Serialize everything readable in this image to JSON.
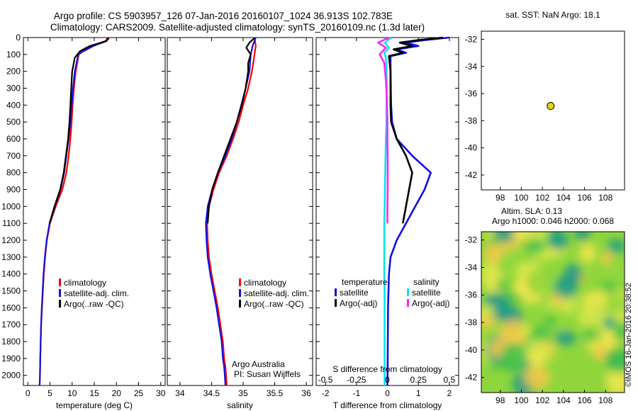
{
  "title": {
    "line1": "Argo profile: CS 5903957_126 07-Jan-2016 20160107_1024 36.913S 102.783E",
    "line2": "Climatology: CARS2009. Satellite-adjusted climatology: synTS_20160109.nc (1.3d later)"
  },
  "credit": "©IMOS 16-Jan-2016 20:38:52",
  "colors": {
    "climatology": "#ff0000",
    "satellite": "#1010dd",
    "argo": "#000000",
    "sal_satellite": "#00e5ee",
    "sal_argo": "#ff22ff",
    "marker": "#e8d800"
  },
  "chart_data": [
    {
      "type": "line",
      "id": "temperature",
      "xlabel": "temperature (deg C)",
      "ylabel": "",
      "xlim": [
        -1,
        31
      ],
      "ylim": [
        2060,
        0
      ],
      "xticks": [
        "0",
        "5",
        "10",
        "15",
        "20",
        "25",
        "30"
      ],
      "xtick_values": [
        0,
        5,
        10,
        15,
        20,
        25,
        30
      ],
      "yticks": [
        "0",
        "100",
        "200",
        "300",
        "400",
        "500",
        "600",
        "700",
        "800",
        "900",
        "1000",
        "1100",
        "1200",
        "1300",
        "1400",
        "1500",
        "1600",
        "1700",
        "1800",
        "1900",
        "2000"
      ],
      "ytick_values": [
        0,
        100,
        200,
        300,
        400,
        500,
        600,
        700,
        800,
        900,
        1000,
        1100,
        1200,
        1300,
        1400,
        1500,
        1600,
        1700,
        1800,
        1900,
        2000
      ],
      "legend": {
        "position": "lower-middle",
        "entries": [
          "climatology",
          "satellite-adj. clim.",
          "Argo(..raw -QC)"
        ]
      },
      "series": [
        {
          "name": "climatology",
          "color": "#ff0000",
          "x": [
            18.0,
            17.6,
            14.5,
            12.5,
            11.5,
            10.8,
            10.4,
            10.1,
            9.9,
            9.6,
            9.2,
            8.7,
            7.8,
            6.3,
            5.0,
            4.3,
            3.9,
            3.6,
            3.4,
            3.2,
            3.0,
            2.9,
            2.8,
            2.75,
            2.7,
            2.65
          ],
          "y": [
            0,
            20,
            50,
            80,
            100,
            200,
            300,
            400,
            500,
            600,
            700,
            800,
            900,
            1000,
            1100,
            1200,
            1300,
            1400,
            1500,
            1600,
            1700,
            1800,
            1900,
            2000,
            2040,
            2060
          ]
        },
        {
          "name": "satellite-adj. clim.",
          "color": "#1010dd",
          "x": [
            18.2,
            17.8,
            14.8,
            12.6,
            11.4,
            10.6,
            10.2,
            9.9,
            9.6,
            9.2,
            8.7,
            8.2,
            7.4,
            6.1,
            4.9,
            4.25,
            3.85,
            3.55,
            3.35,
            3.15,
            3.0,
            2.9,
            2.8,
            2.75,
            2.7,
            2.65
          ],
          "y": [
            0,
            20,
            50,
            80,
            100,
            200,
            300,
            400,
            500,
            600,
            700,
            800,
            900,
            1000,
            1100,
            1200,
            1300,
            1400,
            1500,
            1600,
            1700,
            1800,
            1900,
            2000,
            2040,
            2060
          ]
        },
        {
          "name": "Argo(..raw -QC)",
          "color": "#000000",
          "x": [
            18.3,
            17.7,
            14.0,
            11.8,
            10.6,
            10.0,
            9.8,
            9.6,
            9.4,
            9.1,
            8.6,
            8.1,
            7.3,
            6.0,
            4.9
          ],
          "y": [
            2,
            20,
            50,
            80,
            120,
            200,
            300,
            400,
            500,
            600,
            700,
            800,
            900,
            1000,
            1100
          ]
        }
      ]
    },
    {
      "type": "line",
      "id": "salinity",
      "xlabel": "salinity",
      "ylabel": "",
      "xlim": [
        33.8,
        36.1
      ],
      "ylim": [
        2060,
        0
      ],
      "xticks": [
        "34",
        "34.5",
        "35",
        "35.5",
        "36"
      ],
      "xtick_values": [
        34,
        34.5,
        35,
        35.5,
        36
      ],
      "legend": {
        "position": "lower-right",
        "entries": [
          "climatology",
          "satellite-adj. clim.",
          "Argo(..raw -QC)"
        ]
      },
      "annotation": {
        "line1": "Argo Australia",
        "line2": "PI: Susan Wijffels"
      },
      "series": [
        {
          "name": "climatology",
          "color": "#ff0000",
          "x": [
            35.18,
            35.2,
            35.18,
            35.14,
            35.08,
            35.0,
            34.93,
            34.84,
            34.74,
            34.62,
            34.53,
            34.46,
            34.43,
            34.44,
            34.46,
            34.5,
            34.55,
            34.6,
            34.64,
            34.68,
            34.7,
            34.72,
            34.73,
            34.74
          ],
          "y": [
            0,
            50,
            100,
            200,
            300,
            400,
            500,
            600,
            700,
            800,
            900,
            1000,
            1100,
            1200,
            1300,
            1400,
            1500,
            1600,
            1700,
            1800,
            1900,
            1950,
            2000,
            2060
          ]
        },
        {
          "name": "satellite-adj. clim.",
          "color": "#1010dd",
          "x": [
            35.2,
            35.15,
            35.12,
            35.1,
            35.04,
            34.97,
            34.9,
            34.82,
            34.72,
            34.6,
            34.51,
            34.44,
            34.41,
            34.42,
            34.44,
            34.48,
            34.53,
            34.58,
            34.62,
            34.66,
            34.68,
            34.7,
            34.71,
            34.72
          ],
          "y": [
            0,
            50,
            100,
            200,
            300,
            400,
            500,
            600,
            700,
            800,
            900,
            1000,
            1100,
            1200,
            1300,
            1400,
            1500,
            1600,
            1700,
            1800,
            1900,
            1950,
            2000,
            2060
          ]
        },
        {
          "name": "Argo(..raw -QC)",
          "color": "#000000",
          "x": [
            35.18,
            35.1,
            35.05,
            35.12,
            35.08,
            35.08,
            35.04,
            34.98,
            34.9,
            34.8,
            34.7,
            34.6,
            34.51,
            34.46,
            34.44
          ],
          "y": [
            2,
            30,
            60,
            100,
            150,
            200,
            300,
            400,
            500,
            600,
            700,
            800,
            900,
            1000,
            1100
          ]
        }
      ]
    },
    {
      "type": "line",
      "id": "difference",
      "xlabel": "T difference from climatology",
      "xlabel2": "S difference from climatology",
      "xlim": [
        -2.3,
        2.3
      ],
      "ylim": [
        2060,
        0
      ],
      "xticks": [
        "-2",
        "-1",
        "0",
        "1",
        "2"
      ],
      "xtick_values": [
        -2,
        -1,
        0,
        1,
        2
      ],
      "sticks": [
        "-0.5",
        "-0.25",
        "0",
        "0.25",
        "0.5"
      ],
      "stick_values": [
        -0.5,
        -0.25,
        0,
        0.25,
        0.5
      ],
      "legend": {
        "position": "lower-middle",
        "temperature_header": "temperature",
        "salinity_header": "salinity",
        "entries": [
          "satellite",
          "Argo(-adj)",
          "satellite",
          "Argo(-adj)"
        ]
      },
      "series": [
        {
          "name": "satellite",
          "group": "temperature",
          "color": "#1010dd",
          "x": [
            2.0,
            1.2,
            0.6,
            1.0,
            0.3,
            0.6,
            0.1,
            0.1,
            0.12,
            0.15,
            0.3,
            0.8,
            1.4,
            1.2,
            0.9,
            0.6,
            0.3,
            0.1,
            0.05,
            0.02,
            0.01,
            0.0
          ],
          "y": [
            0,
            15,
            30,
            50,
            70,
            90,
            110,
            200,
            400,
            500,
            600,
            700,
            800,
            900,
            1000,
            1100,
            1200,
            1300,
            1400,
            1600,
            1900,
            2060
          ]
        },
        {
          "name": "Argo(-adj)",
          "group": "temperature",
          "color": "#000000",
          "x": [
            1.8,
            1.0,
            0.4,
            0.8,
            0.2,
            0.5,
            0.05,
            0.1,
            0.1,
            0.12,
            0.3,
            0.6,
            0.8,
            0.7,
            0.6,
            0.5
          ],
          "y": [
            0,
            15,
            30,
            50,
            70,
            90,
            110,
            200,
            400,
            500,
            600,
            700,
            800,
            900,
            1000,
            1100
          ]
        },
        {
          "name": "satellite",
          "group": "salinity",
          "color": "#00e5ee",
          "x": [
            0.12,
            -0.08,
            0.05,
            -0.1,
            -0.05,
            -0.03,
            -0.02,
            -0.03,
            -0.03,
            -0.05,
            -0.06,
            -0.07,
            -0.08,
            -0.09,
            -0.1,
            -0.1,
            -0.1,
            -0.1,
            -0.09,
            -0.09,
            -0.09,
            -0.09,
            -0.09
          ],
          "y": [
            0,
            30,
            60,
            90,
            120,
            200,
            300,
            400,
            500,
            600,
            700,
            800,
            900,
            1000,
            1100,
            1200,
            1300,
            1400,
            1500,
            1600,
            1800,
            2000,
            2060
          ]
        },
        {
          "name": "Argo(-adj)",
          "group": "salinity",
          "color": "#ff22ff",
          "x": [
            0.05,
            -0.3,
            -0.05,
            -0.25,
            -0.1,
            -0.05,
            -0.02,
            0.0,
            0.0,
            0.01,
            0.01,
            0.01,
            0.0,
            0.0
          ],
          "y": [
            0,
            30,
            60,
            100,
            150,
            250,
            350,
            500,
            600,
            700,
            800,
            900,
            1000,
            1100
          ]
        }
      ]
    },
    {
      "type": "scatter",
      "id": "location",
      "title": "sat. SST: NaN Argo: 18.1",
      "xlim": [
        96.2,
        109.8
      ],
      "ylim": [
        -43.1,
        -31.4
      ],
      "xticks": [
        "98",
        "100",
        "102",
        "104",
        "106",
        "108"
      ],
      "xtick_values": [
        98,
        100,
        102,
        104,
        106,
        108
      ],
      "yticks": [
        "-32",
        "-34",
        "-36",
        "-38",
        "-40",
        "-42"
      ],
      "ytick_values": [
        -32,
        -34,
        -36,
        -38,
        -40,
        -42
      ],
      "points": [
        {
          "x": 102.783,
          "y": -36.913
        }
      ]
    },
    {
      "type": "heatmap",
      "id": "sla",
      "title_line1": "Altim. SLA: 0.13",
      "title_line2": "Argo h1000: 0.046 h2000: 0.068",
      "xlim": [
        96.2,
        109.8
      ],
      "ylim": [
        -43.1,
        -31.4
      ],
      "xticks": [
        "98",
        "100",
        "102",
        "104",
        "106",
        "108"
      ],
      "xtick_values": [
        98,
        100,
        102,
        104,
        106,
        108
      ],
      "yticks": [
        "-32",
        "-34",
        "-36",
        "-38",
        "-40",
        "-42"
      ],
      "ytick_values": [
        -32,
        -34,
        -36,
        -38,
        -40,
        -42
      ],
      "palette": [
        "#1a9a8a",
        "#3fbf4a",
        "#8fd63c",
        "#d9e84a",
        "#f5e64d",
        "#f8c84a"
      ]
    }
  ]
}
